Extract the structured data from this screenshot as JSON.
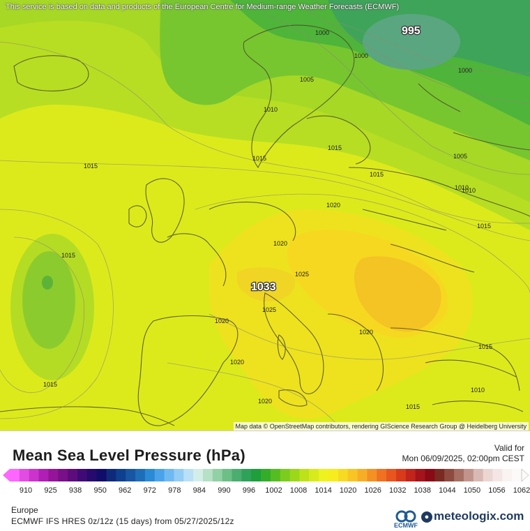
{
  "map": {
    "attribution_top": "This service is based on data and products of the European Centre for Medium-range Weather Forecasts (ECMWF)",
    "attribution_bottom": "Map data © OpenStreetMap contributors, rendering GIScience Research Group @ Heidelberg University",
    "extreme_high": "1033",
    "extreme_low": "995",
    "isobar_labels": [
      "1000",
      "1000",
      "1000",
      "1005",
      "1010",
      "1010",
      "1015",
      "1015",
      "1015",
      "1015",
      "1020",
      "1020",
      "1020",
      "1020",
      "1020",
      "1020",
      "1025",
      "1025",
      "1015",
      "1005",
      "1010",
      "1015",
      "1015",
      "1015",
      "1010",
      "1015"
    ]
  },
  "legend": {
    "title": "Mean Sea Level Pressure (hPa)",
    "valid_label": "Valid for",
    "valid_date": "Mon 06/09/2025, 02:00pm CEST",
    "scale_colors": [
      "#ff66ff",
      "#e34ce3",
      "#cc33cc",
      "#b01eb5",
      "#96149a",
      "#7a0f8a",
      "#5e0c7d",
      "#3f0a76",
      "#270a6e",
      "#0f0d69",
      "#0f2a7a",
      "#0f3f8f",
      "#1856a3",
      "#1e6db8",
      "#2b8ad6",
      "#4aa3ea",
      "#6fb9f2",
      "#93cdf5",
      "#b9e0f6",
      "#d3eee8",
      "#b6e1c6",
      "#92d0a6",
      "#6cbf87",
      "#4cad70",
      "#2fa25a",
      "#1f9e3c",
      "#33ad2a",
      "#55bd22",
      "#7ccc1d",
      "#9cd719",
      "#bde21a",
      "#d8ea1c",
      "#eef21f",
      "#f7ec1d",
      "#f8da22",
      "#f8c525",
      "#f7ae26",
      "#f59024",
      "#f07121",
      "#e8551f",
      "#d93a1c",
      "#c2241b",
      "#a4141a",
      "#8a0a16",
      "#7b2a22",
      "#8e4a3f",
      "#a76e63",
      "#c0948c",
      "#d8b9b3",
      "#ecd6d2",
      "#f4e6e4",
      "#f9f3f2",
      "#fcf9f9"
    ],
    "ticks": [
      "910",
      "925",
      "938",
      "950",
      "962",
      "972",
      "978",
      "984",
      "990",
      "996",
      "1002",
      "1008",
      "1014",
      "1020",
      "1026",
      "1032",
      "1038",
      "1044",
      "1050",
      "1056",
      "1062"
    ],
    "region": "Europe",
    "model": "ECMWF IFS HRES 0z/12z (15 days) from  05/27/2025/12z",
    "ecmwf_logo_text": "ECMWF",
    "brand": "meteologix.com"
  }
}
